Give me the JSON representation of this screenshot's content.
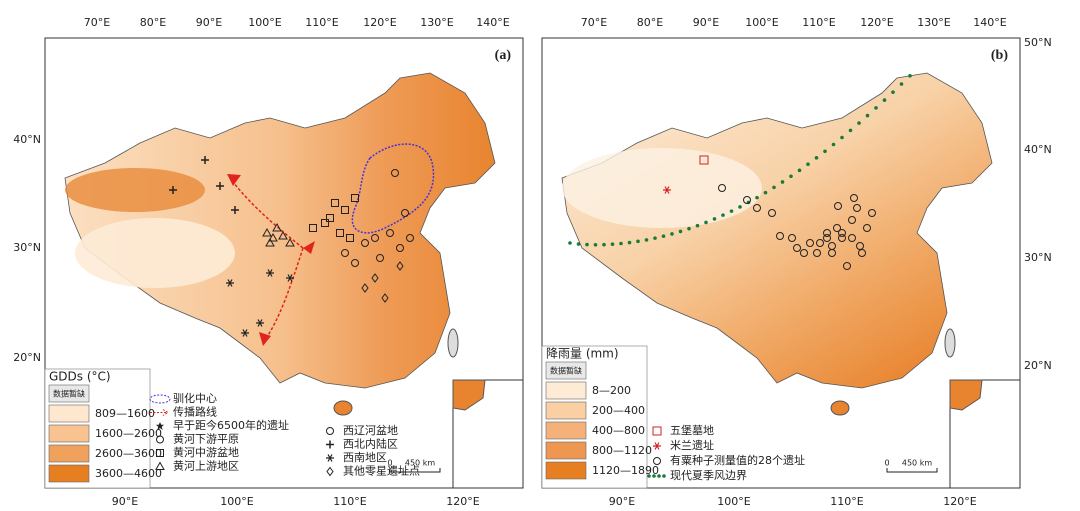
{
  "panels": [
    {
      "label": "(a)",
      "top_ticks": [
        "70°E",
        "80°E",
        "90°E",
        "100°E",
        "110°E",
        "120°E",
        "130°E",
        "140°E"
      ],
      "bottom_ticks": [
        "90°E",
        "100°E",
        "110°E",
        "120°E"
      ],
      "left_ticks": [
        "40°N",
        "30°N",
        "20°N"
      ],
      "legend_title": "GDDs (°C)",
      "legend_classes": [
        "数据暂缺",
        "809—1600",
        "1600—2600",
        "2600—3600",
        "3600—4600"
      ],
      "symbols": [
        "驯化中心",
        "传播路线",
        "早于距今6500年的遗址",
        "黄河下游平原",
        "黄河中游盆地",
        "黄河上游地区",
        "西辽河盆地",
        "西北内陆区",
        "西南地区",
        "其他零星遗址点"
      ],
      "scale_zero": "0",
      "scale_label": "450 km"
    },
    {
      "label": "(b)",
      "top_ticks": [
        "70°E",
        "80°E",
        "90°E",
        "100°E",
        "110°E",
        "120°E",
        "130°E",
        "140°E"
      ],
      "bottom_ticks": [
        "90°E",
        "100°E",
        "110°E",
        "120°E"
      ],
      "right_ticks": [
        "50°N",
        "40°N",
        "30°N",
        "20°N"
      ],
      "legend_title": "降雨量 (mm)",
      "legend_classes": [
        "数据暂缺",
        "8—200",
        "200—400",
        "400—800",
        "800—1120",
        "1120—1890"
      ],
      "symbols": [
        "五堡墓地",
        "米兰遗址",
        "有粟种子测量值的28个遗址",
        "现代夏季风边界"
      ],
      "scale_zero": "0",
      "scale_label": "450 km"
    }
  ]
}
